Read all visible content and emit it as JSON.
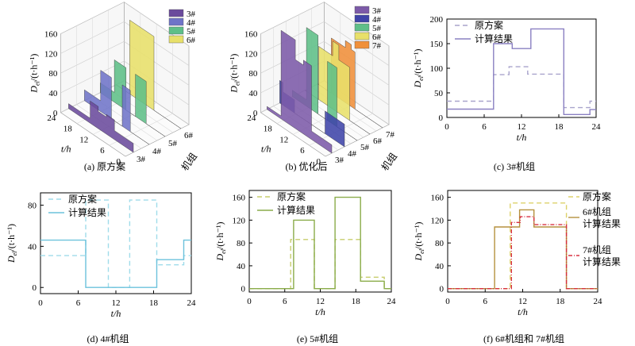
{
  "x_ticks": [
    "0",
    "6",
    "12",
    "18",
    "24"
  ],
  "axis_x_label": "t/h",
  "axis_y_label": "D_el/(t·h⁻¹)",
  "unit_axis_label": "机组",
  "chart_data": [
    {
      "id": "a",
      "type": "area3d",
      "caption": "(a) 原方案",
      "z_ticks": [
        "0",
        "40",
        "80",
        "120",
        "160"
      ],
      "t_ticks": [
        "0",
        "6",
        "12",
        "18",
        "24"
      ],
      "unit_ticks": [
        "3#",
        "4#",
        "5#",
        "6#"
      ],
      "legend": [
        {
          "name": "3#",
          "color": "#6a4a9c"
        },
        {
          "name": "4#",
          "color": "#6f74c8"
        },
        {
          "name": "5#",
          "color": "#5fbf88"
        },
        {
          "name": "6#",
          "color": "#e8e06a"
        }
      ],
      "zlim": [
        0,
        160
      ]
    },
    {
      "id": "b",
      "type": "area3d",
      "caption": "(b) 优化后",
      "z_ticks": [
        "0",
        "40",
        "80",
        "120",
        "160"
      ],
      "t_ticks": [
        "0",
        "6",
        "12",
        "18",
        "24"
      ],
      "unit_ticks": [
        "3#",
        "4#",
        "5#",
        "6#",
        "7#"
      ],
      "legend": [
        {
          "name": "3#",
          "color": "#7c5aa8"
        },
        {
          "name": "4#",
          "color": "#3f44a8"
        },
        {
          "name": "5#",
          "color": "#5fbf88"
        },
        {
          "name": "6#",
          "color": "#e8e06a"
        },
        {
          "name": "7#",
          "color": "#f0903a"
        }
      ],
      "zlim": [
        0,
        160
      ]
    },
    {
      "id": "c",
      "type": "line",
      "caption": "(c) 3#机组",
      "xlim": [
        0,
        24
      ],
      "ylim": [
        0,
        200
      ],
      "y_ticks": [
        "0",
        "50",
        "100",
        "150",
        "200"
      ],
      "y_tick_values": [
        0,
        50,
        100,
        150,
        200
      ],
      "legend_pos": "top-left",
      "series": [
        {
          "name": "原方案",
          "color": "#a9a4cc",
          "dash": "6,4",
          "points": [
            [
              0,
              33
            ],
            [
              7.5,
              33
            ],
            [
              7.5,
              87
            ],
            [
              10,
              87
            ],
            [
              10,
              103
            ],
            [
              13,
              103
            ],
            [
              13,
              88
            ],
            [
              18.8,
              88
            ],
            [
              18.8,
              20
            ],
            [
              23,
              20
            ],
            [
              23,
              33
            ],
            [
              24,
              33
            ]
          ]
        },
        {
          "name": "计算结果",
          "color": "#8a80c2",
          "dash": "",
          "points": [
            [
              0,
              17
            ],
            [
              7.5,
              17
            ],
            [
              7.5,
              150
            ],
            [
              10.5,
              150
            ],
            [
              10.5,
              140
            ],
            [
              13.5,
              140
            ],
            [
              13.5,
              180
            ],
            [
              18.8,
              180
            ],
            [
              18.8,
              6
            ],
            [
              23,
              6
            ],
            [
              23,
              16
            ],
            [
              24,
              16
            ]
          ]
        }
      ]
    },
    {
      "id": "d",
      "type": "line",
      "caption": "(d) 4#机组",
      "xlim": [
        0,
        24
      ],
      "ylim": [
        -6,
        92
      ],
      "y_ticks": [
        "0",
        "40",
        "80"
      ],
      "y_tick_values": [
        0,
        40,
        80
      ],
      "legend_pos": "top-left",
      "series": [
        {
          "name": "原方案",
          "color": "#9fdcea",
          "dash": "6,4",
          "points": [
            [
              0,
              31
            ],
            [
              7.2,
              31
            ],
            [
              7.2,
              85
            ],
            [
              10.8,
              85
            ],
            [
              10.8,
              0
            ],
            [
              14.2,
              0
            ],
            [
              14.2,
              85
            ],
            [
              18.5,
              85
            ],
            [
              18.5,
              22
            ],
            [
              22.8,
              22
            ],
            [
              22.8,
              31
            ],
            [
              24,
              31
            ]
          ]
        },
        {
          "name": "计算结果",
          "color": "#6cc2dc",
          "dash": "",
          "points": [
            [
              0,
              46
            ],
            [
              7.2,
              46
            ],
            [
              7.2,
              0
            ],
            [
              18.5,
              0
            ],
            [
              18.5,
              27
            ],
            [
              22.8,
              27
            ],
            [
              22.8,
              46
            ],
            [
              24,
              46
            ]
          ]
        }
      ]
    },
    {
      "id": "e",
      "type": "line",
      "caption": "(e) 5#机组",
      "xlim": [
        0,
        24
      ],
      "ylim": [
        -6,
        172
      ],
      "y_ticks": [
        "0",
        "40",
        "80",
        "120",
        "160"
      ],
      "y_tick_values": [
        0,
        40,
        80,
        120,
        160
      ],
      "legend_pos": "top-left",
      "series": [
        {
          "name": "原方案",
          "color": "#c7cd6c",
          "dash": "6,4",
          "points": [
            [
              0,
              0
            ],
            [
              7,
              0
            ],
            [
              7,
              86
            ],
            [
              11,
              86
            ],
            [
              11,
              0
            ],
            [
              14.5,
              0
            ],
            [
              14.5,
              86
            ],
            [
              18.8,
              86
            ],
            [
              18.8,
              20
            ],
            [
              22.8,
              20
            ],
            [
              22.8,
              0
            ],
            [
              24,
              0
            ]
          ]
        },
        {
          "name": "计算结果",
          "color": "#8aac4a",
          "dash": "",
          "points": [
            [
              0,
              0
            ],
            [
              7.5,
              0
            ],
            [
              7.5,
              120
            ],
            [
              11,
              120
            ],
            [
              11,
              0
            ],
            [
              14.5,
              0
            ],
            [
              14.5,
              160
            ],
            [
              18.8,
              160
            ],
            [
              18.8,
              13
            ],
            [
              22.8,
              13
            ],
            [
              22.8,
              0
            ],
            [
              24,
              0
            ]
          ]
        }
      ]
    },
    {
      "id": "f",
      "type": "line",
      "caption": "(f) 6#机组和 7#机组",
      "xlim": [
        0,
        24
      ],
      "ylim": [
        -6,
        172
      ],
      "y_ticks": [
        "0",
        "40",
        "80",
        "120",
        "160"
      ],
      "y_tick_values": [
        0,
        40,
        80,
        120,
        160
      ],
      "legend_pos": "right",
      "series": [
        {
          "name": "原方案",
          "color": "#ddd26a",
          "dash": "6,4",
          "points": [
            [
              0,
              0
            ],
            [
              10,
              0
            ],
            [
              10,
              150
            ],
            [
              19,
              150
            ],
            [
              19,
              0
            ],
            [
              24,
              0
            ]
          ]
        },
        {
          "name": "6#机组计算结果",
          "color": "#b5913e",
          "dash": "",
          "points": [
            [
              0,
              0
            ],
            [
              7.5,
              0
            ],
            [
              7.5,
              108
            ],
            [
              11.5,
              108
            ],
            [
              11.5,
              138
            ],
            [
              13.8,
              138
            ],
            [
              13.8,
              108
            ],
            [
              19,
              108
            ],
            [
              19,
              0
            ],
            [
              24,
              0
            ]
          ]
        },
        {
          "name": "7#机组计算结果",
          "color": "#d83040",
          "dash": "5,2,1,2",
          "points": [
            [
              0,
              0
            ],
            [
              10.2,
              0
            ],
            [
              10.2,
              116
            ],
            [
              11.6,
              116
            ],
            [
              11.6,
              126
            ],
            [
              13.8,
              126
            ],
            [
              13.8,
              112
            ],
            [
              19,
              112
            ],
            [
              19,
              0
            ],
            [
              24,
              0
            ]
          ]
        }
      ]
    }
  ]
}
